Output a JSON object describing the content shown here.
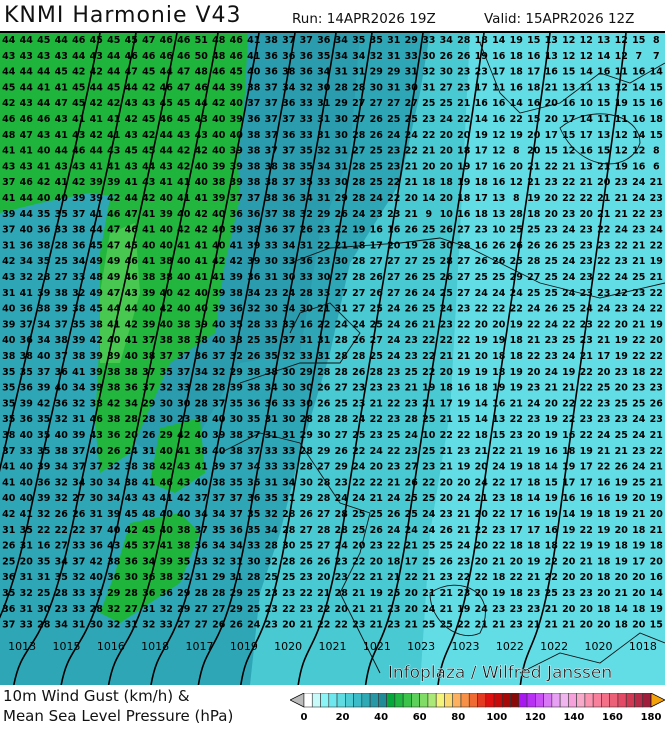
{
  "header": {
    "title": "KNMI Harmonie V43",
    "run": "Run: 14APR2026 19Z",
    "valid": "Valid: 15APR2026 12Z"
  },
  "map": {
    "field": "10m wind gust (km/h)",
    "watermark": "Infoplaza / Wilfred Janssen",
    "colors": {
      "green": "#1fb53c",
      "light_green": "#45c84f",
      "teal": "#2a9fb1",
      "mid_teal": "#3dbcc8",
      "light_cyan": "#6fe4ec"
    },
    "isobar_labels": [
      "1013",
      "1015",
      "1016",
      "1018",
      "1017",
      "1019",
      "1020",
      "1021",
      "1021",
      "1023",
      "1023",
      "1022",
      "1022",
      "1020",
      "1018"
    ],
    "gust_rows": [
      "44 44 45 44 46 45 45 45 47 46 46 51 48 46 41 38 37 37 36 34 35 35 31 29 33 34 28 18 14 19 15 13 12 12 13 12 15 8",
      "43 43 43 43 44 43 44 46 46 46 46 50 48 46 41 36 36 36 35 34 34 32 31 33 30 26 26 19 16 18 16 13 12 12 14 12 7 7",
      "44 44 44 45 42 42 44 47 45 44 47 48 46 45 40 36 38 36 34 31 31 29 29 31 32 30 23 23 17 18 17 16 15 14 16 11 16 14",
      "45 44 41 41 45 44 45 44 42 46 47 46 44 39 38 37 34 32 30 28 28 30 31 30 31 27 23 17 11 16 18 21 13 11 13 12 14 15",
      "42 43 44 47 45 42 42 43 43 45 45 44 42 40 37 37 36 33 31 29 27 27 27 27 25 25 21 16 16 14 16 20 16 10 15 19 15 16",
      "46 46 46 43 41 41 41 42 45 46 45 43 40 39 36 37 37 33 31 30 27 26 25 25 23 24 22 14 16 22 15 20 17 14 11 11 16 18",
      "48 47 43 41 43 42 41 43 42 44 43 43 40 40 38 37 36 33 31 30 28 26 24 24 22 20 20 19 12 19 20 17 15 17 13 12 14 15",
      "41 41 40 44 46 44 43 45 45 44 42 42 40 39 38 37 37 35 32 31 27 25 23 22 21 20 18 17 12 8 20 15 12 16 15 12 12 8",
      "43 43 41 43 43 41 41 43 44 43 42 40 39 39 38 38 38 35 34 31 28 25 23 21 20 20 19 17 16 20 21 22 21 13 21 19 16 6",
      "37 46 42 41 42 39 39 41 43 41 41 40 38 39 38 38 37 35 33 30 28 25 22 21 18 18 19 18 16 12 21 23 22 21 20 23 24 21",
      "41 44 40 40 39 39 42 44 42 40 41 41 39 37 37 38 36 34 31 29 28 24 22 20 14 20 18 17 13 8 19 20 22 22 21 21 24 23",
      "39 44 35 35 37 41 46 47 41 39 40 42 40 36 36 37 38 32 29 26 24 23 23 21 9 10 16 18 13 28 18 20 23 20 21 21 22 23",
      "37 40 36 33 38 44 47 46 41 40 42 42 40 39 38 36 37 26 23 22 19 16 16 26 25 26 27 23 10 25 25 23 24 23 22 24 23 24",
      "31 36 38 28 36 45 47 45 40 40 41 41 40 41 39 33 34 31 22 21 18 17 20 19 28 30 28 16 26 26 26 26 25 23 23 22 21 22",
      "42 34 35 25 34 49 49 46 41 38 40 41 42 42 39 30 33 36 23 30 28 27 27 27 25 28 27 26 26 25 28 25 24 23 22 23 21 19",
      "43 32 28 27 33 48 49 46 38 38 40 41 41 39 36 31 30 33 30 27 28 26 27 26 25 26 27 25 25 29 27 25 24 23 22 24 25 21",
      "31 41 39 38 32 49 47 43 39 40 42 40 39 38 34 23 24 28 33 27 27 26 27 26 24 25 27 24 24 24 25 25 24 23 23 22 23 22",
      "40 36 38 39 38 45 44 44 40 42 40 40 39 36 32 30 34 30 21 31 27 25 24 26 25 24 23 22 22 22 24 26 25 24 24 23 24 22",
      "39 37 34 37 35 38 41 42 39 40 38 39 40 35 28 33 33 16 22 24 24 25 24 26 21 23 22 20 20 19 22 24 22 23 22 20 21 19",
      "40 36 34 38 39 42 40 41 37 38 38 38 40 33 25 35 37 31 31 28 26 27 24 23 22 22 22 19 19 18 21 23 25 23 21 19 22 20",
      "38 38 40 37 38 39 39 40 38 37 37 36 37 32 26 35 32 33 31 28 28 25 24 23 22 21 21 20 18 18 22 23 24 21 17 19 22 22",
      "35 35 37 36 41 39 38 38 37 35 37 34 32 29 38 38 30 29 28 28 26 28 23 25 22 20 19 19 18 19 20 24 19 22 20 23 18 22",
      "35 36 39 40 34 39 38 36 37 32 33 28 28 39 38 34 30 30 26 27 23 23 23 21 19 18 16 18 19 19 23 21 21 22 25 20 23 23",
      "35 39 42 36 32 38 42 34 29 30 30 28 37 35 36 36 33 30 26 25 23 21 22 23 21 17 19 14 16 21 24 20 22 22 23 25 25 26",
      "35 36 35 32 31 46 38 28 28 30 23 38 40 30 35 31 30 28 28 28 24 22 23 28 25 21 15 14 13 22 23 19 22 23 23 23 24 23",
      "38 40 35 40 39 43 36 20 26 29 42 40 39 38 37 31 31 29 30 27 25 23 25 24 10 22 22 18 15 23 20 19 16 22 24 25 24 21",
      "37 33 35 38 37 40 26 24 31 40 41 38 40 38 37 33 33 28 29 26 22 24 22 23 25 21 23 21 22 21 19 16 18 19 21 21 23 22",
      "41 40 39 34 37 37 32 38 38 42 43 41 39 37 34 33 33 28 27 29 24 20 23 27 23 21 19 20 24 19 18 14 19 17 22 26 24 21",
      "41 40 36 32 34 30 34 38 41 46 43 40 38 35 36 31 34 30 28 23 22 22 21 26 22 20 20 24 22 17 18 15 17 17 16 19 25 21",
      "40 40 39 32 27 30 34 43 43 41 42 37 37 37 36 35 31 29 28 24 24 21 24 25 25 20 24 21 23 18 14 19 16 16 16 19 20 19",
      "42 41 32 26 26 31 39 45 48 40 40 34 34 37 35 32 28 26 27 28 25 25 26 25 24 23 21 20 22 17 16 19 14 19 18 19 21 20",
      "31 35 22 22 22 37 40 42 45 40 38 37 35 36 35 34 28 27 28 28 25 26 24 24 24 26 21 22 23 17 17 16 19 22 19 20 18 21",
      "26 31 16 27 33 36 43 45 37 41 38 36 34 34 33 28 30 25 27 24 20 23 22 21 25 25 24 20 22 18 18 18 22 19 19 18 19 18",
      "25 20 35 34 37 42 38 36 34 39 35 33 32 31 30 32 28 26 26 23 22 20 18 17 25 26 23 20 21 20 19 22 20 21 18 19 17 20",
      "36 31 31 35 32 40 36 30 36 38 32 31 29 31 28 25 25 23 20 23 22 21 21 22 21 23 22 22 18 22 21 22 20 20 18 20 20 16",
      "35 32 25 28 33 33 29 28 36 36 29 28 28 29 25 23 23 22 21 28 21 19 25 20 21 21 23 20 19 18 23 25 23 23 20 21 20 14",
      "36 31 30 23 33 28 32 27 31 32 29 27 27 29 25 23 22 23 22 20 21 21 23 20 24 21 19 24 23 23 23 21 20 20 18 14 18 19",
      "37 33 28 34 31 30 32 31 32 33 27 27 26 26 24 23 20 21 22 22 23 21 23 21 25 25 22 21 21 23 21 21 21 20 20 18 20 15"
    ]
  },
  "legend": {
    "line1": "10m Wind Gust (km/h) &",
    "line2": "Mean Sea Level Pressure (hPa)",
    "ticks": [
      "0",
      "20",
      "40",
      "60",
      "80",
      "100",
      "120",
      "140",
      "160",
      "180"
    ],
    "min": 0,
    "max": 180,
    "step": 5,
    "colors": [
      "#ffffff",
      "#c8fafa",
      "#8af4f6",
      "#6ee8ee",
      "#5edce2",
      "#4cccd4",
      "#3cbcc8",
      "#2eaab6",
      "#2898a6",
      "#1f8c98",
      "#05a83a",
      "#20b840",
      "#3cc44a",
      "#5cd05a",
      "#80dc66",
      "#aae878",
      "#f4f47a",
      "#fcd870",
      "#fcb060",
      "#f89048",
      "#f06a34",
      "#e43a22",
      "#e01010",
      "#c80a0a",
      "#a80808",
      "#8a0a0a",
      "#a818f0",
      "#b830f4",
      "#c850f4",
      "#d878f4",
      "#e8a0f4",
      "#f0b4ee",
      "#f6a0dc",
      "#f8a8c8",
      "#fa94b0",
      "#f8809c",
      "#f47088",
      "#ec6078",
      "#e44a66",
      "#d03854",
      "#b82a48",
      "#a01e3c"
    ]
  }
}
